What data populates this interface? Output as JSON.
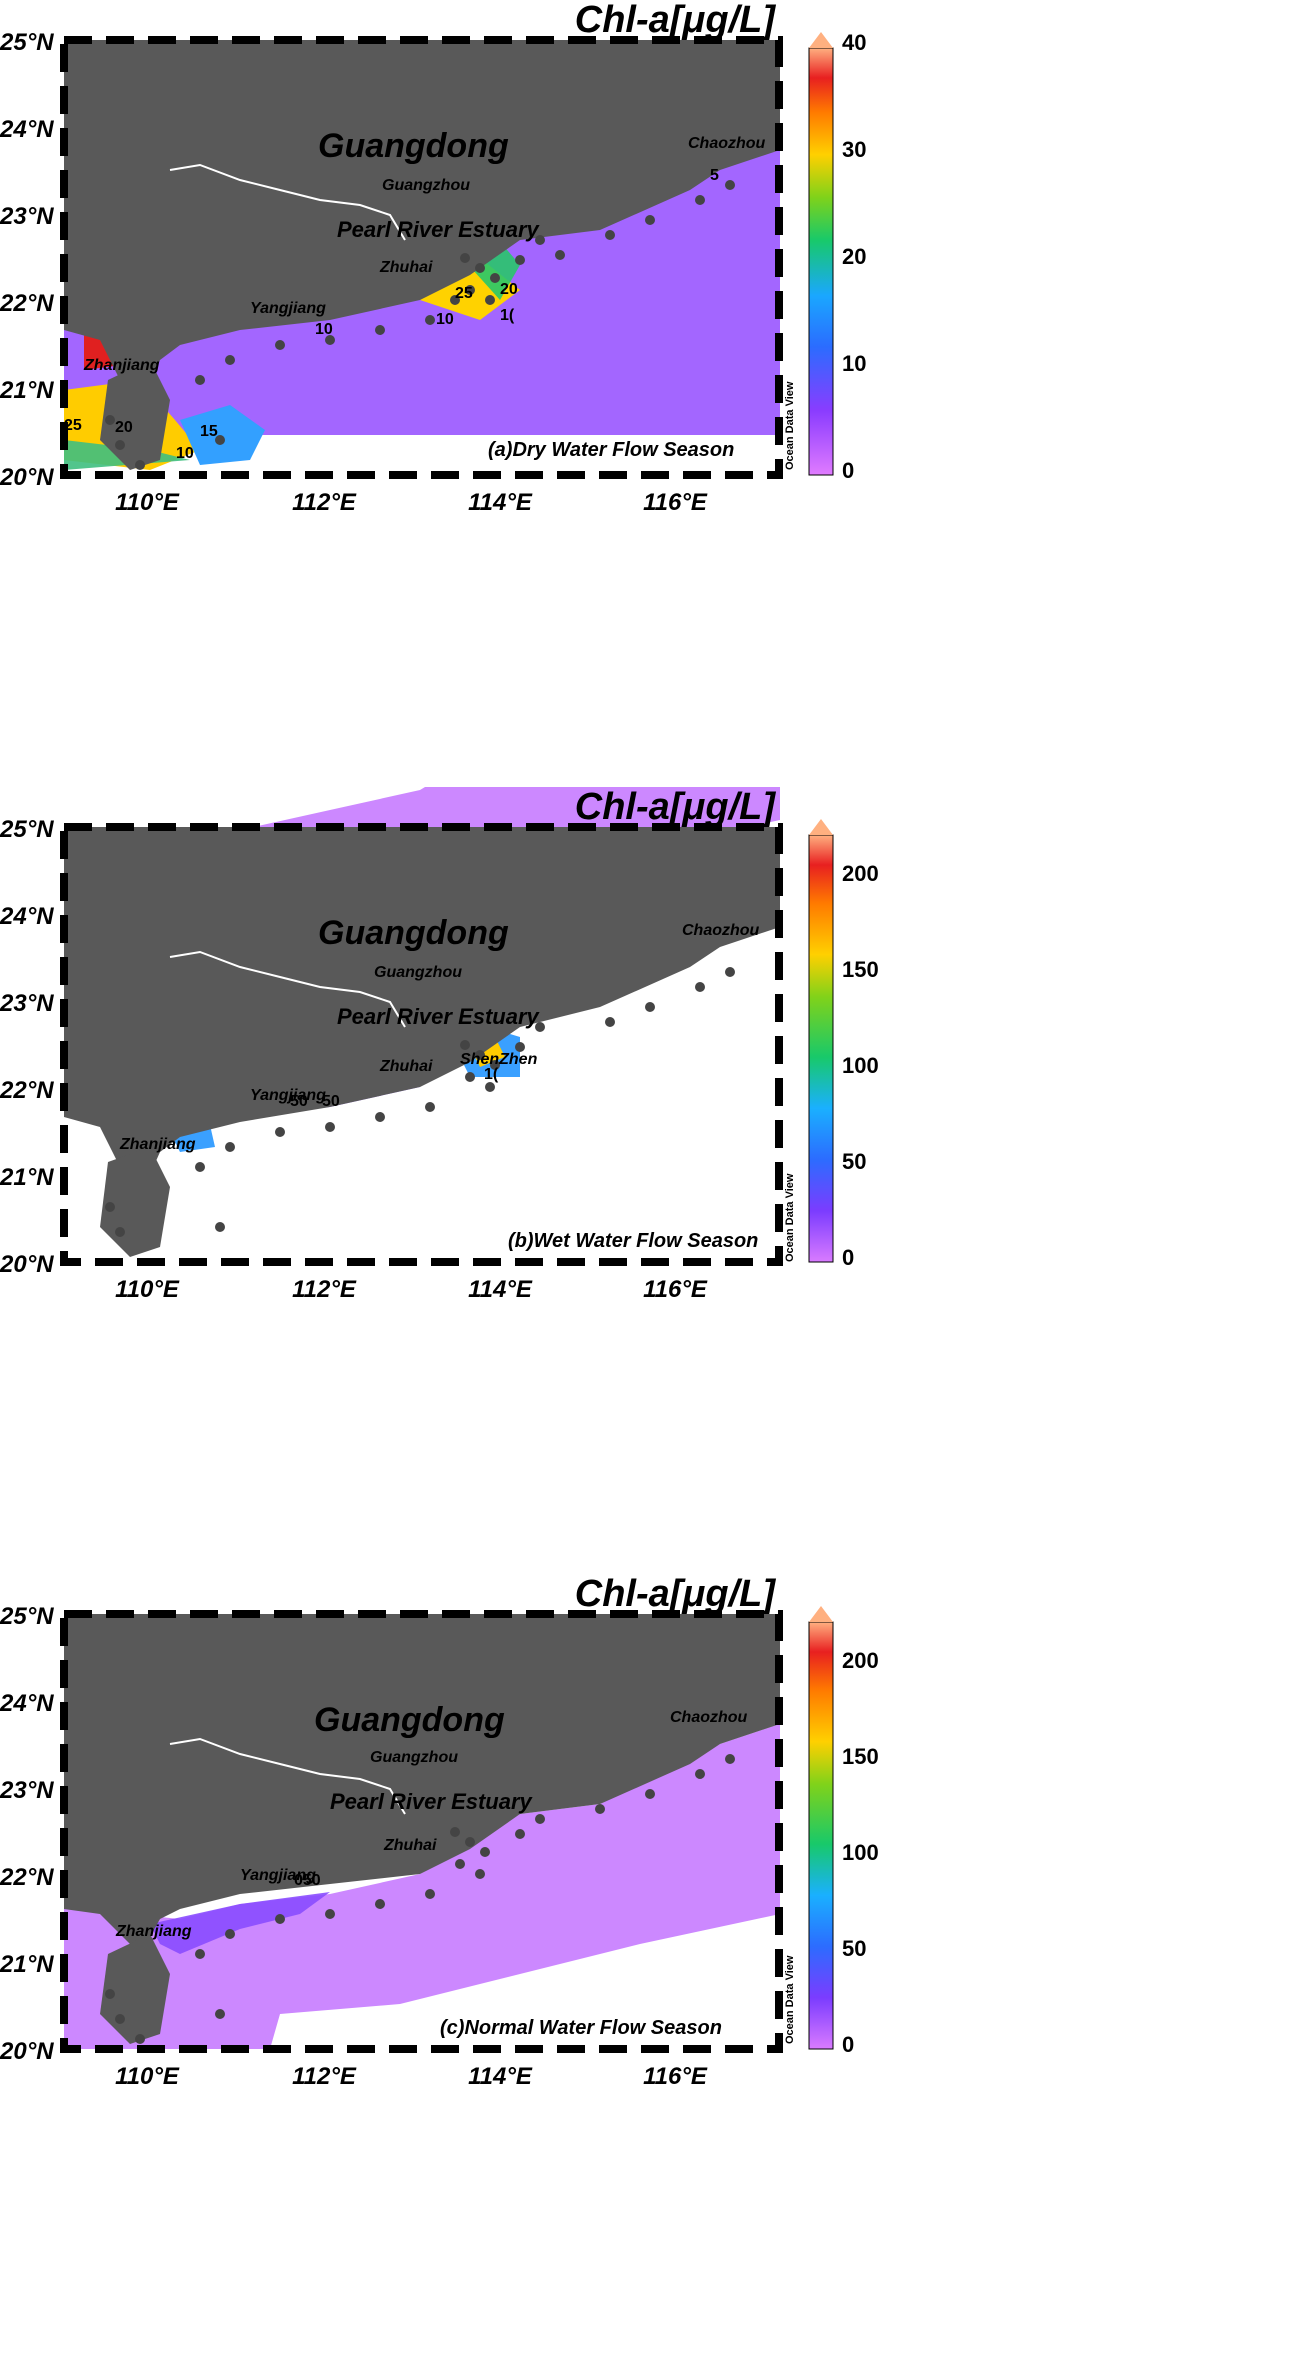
{
  "figure": {
    "colorbar_title": "Chl-a[μg/L]",
    "watermark": "Ocean Data View",
    "axes": {
      "lat_labels": [
        "25°N",
        "24°N",
        "23°N",
        "22°N",
        "21°N",
        "20°N"
      ],
      "lon_labels": [
        "110°E",
        "112°E",
        "114°E",
        "116°E"
      ]
    },
    "place_labels": {
      "province": "Guangdong",
      "estuary": "Pearl River Estuary",
      "guangzhou": "Guangzhou",
      "zhuhai": "Zhuhai",
      "yangjiang": "Yangjiang",
      "zhanjiang": "Zhanjiang",
      "chaozhou": "Chaozhou",
      "shenzhen": "ShenZhen"
    },
    "colors": {
      "land": "#595959",
      "sea_low": "#cc88ff",
      "sea_mid": "#7744ff",
      "blue": "#3399ff",
      "green": "#22cc44",
      "yellow": "#ffcc00",
      "red": "#e02020",
      "station": "#444444"
    },
    "panels": [
      {
        "caption": "(a)Dry Water Flow Season",
        "colorbar_ticks": [
          "40",
          "30",
          "20",
          "10",
          "0"
        ],
        "contour_labels": [
          "5",
          "10",
          "20",
          "25",
          "10",
          "20",
          "15",
          "10",
          "25",
          "1("
        ],
        "show_shenzhen": false
      },
      {
        "caption": "(b)Wet Water Flow Season",
        "colorbar_ticks": [
          "200",
          "150",
          "100",
          "50",
          "0"
        ],
        "contour_labels": [
          "50",
          "50",
          "1("
        ],
        "show_shenzhen": true
      },
      {
        "caption": "(c)Normal Water Flow Season",
        "colorbar_ticks": [
          "200",
          "150",
          "100",
          "50",
          "0"
        ],
        "contour_labels": [
          "050"
        ],
        "show_shenzhen": false
      }
    ]
  }
}
